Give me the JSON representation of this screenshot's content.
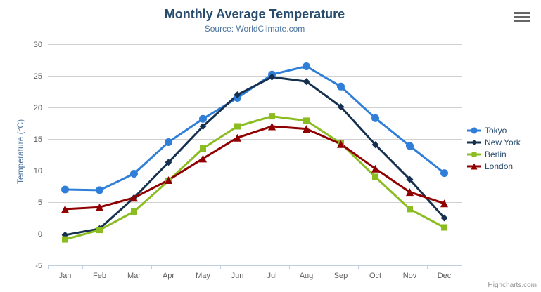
{
  "chart_data": {
    "type": "line",
    "title": "Monthly Average Temperature",
    "subtitle": "Source: WorldClimate.com",
    "xlabel": "",
    "ylabel": "Temperature (°C)",
    "ylim": [
      -5,
      30
    ],
    "yticks": [
      -5,
      0,
      5,
      10,
      15,
      20,
      25,
      30
    ],
    "grid": true,
    "legend_position": "right",
    "categories": [
      "Jan",
      "Feb",
      "Mar",
      "Apr",
      "May",
      "Jun",
      "Jul",
      "Aug",
      "Sep",
      "Oct",
      "Nov",
      "Dec"
    ],
    "series": [
      {
        "name": "Tokyo",
        "color": "#2f7ed8",
        "marker": "circle",
        "values": [
          7.0,
          6.9,
          9.5,
          14.5,
          18.2,
          21.5,
          25.2,
          26.5,
          23.3,
          18.3,
          13.9,
          9.6
        ]
      },
      {
        "name": "New York",
        "color": "#16314f",
        "marker": "diamond",
        "values": [
          -0.2,
          0.8,
          5.7,
          11.3,
          17.0,
          22.0,
          24.8,
          24.1,
          20.1,
          14.1,
          8.6,
          2.5
        ]
      },
      {
        "name": "Berlin",
        "color": "#8bbc21",
        "marker": "square",
        "values": [
          -0.9,
          0.6,
          3.5,
          8.4,
          13.5,
          17.0,
          18.6,
          17.9,
          14.3,
          9.0,
          3.9,
          1.0
        ]
      },
      {
        "name": "London",
        "color": "#910000",
        "marker": "triangle",
        "values": [
          3.9,
          4.2,
          5.7,
          8.5,
          11.9,
          15.2,
          17.0,
          16.6,
          14.2,
          10.3,
          6.6,
          4.8
        ]
      }
    ],
    "credits": "Highcharts.com"
  },
  "theme": {
    "title_color": "#274b6d",
    "subtitle_color": "#4d759e",
    "axis_label_color": "#606060",
    "axis_title_color": "#4d759e",
    "grid_color": "#d0d0d0",
    "axis_line_color": "#c0d0e0",
    "legend_text_color": "#274b6d",
    "credits_color": "#909090",
    "menu_icon_color": "#666666"
  }
}
